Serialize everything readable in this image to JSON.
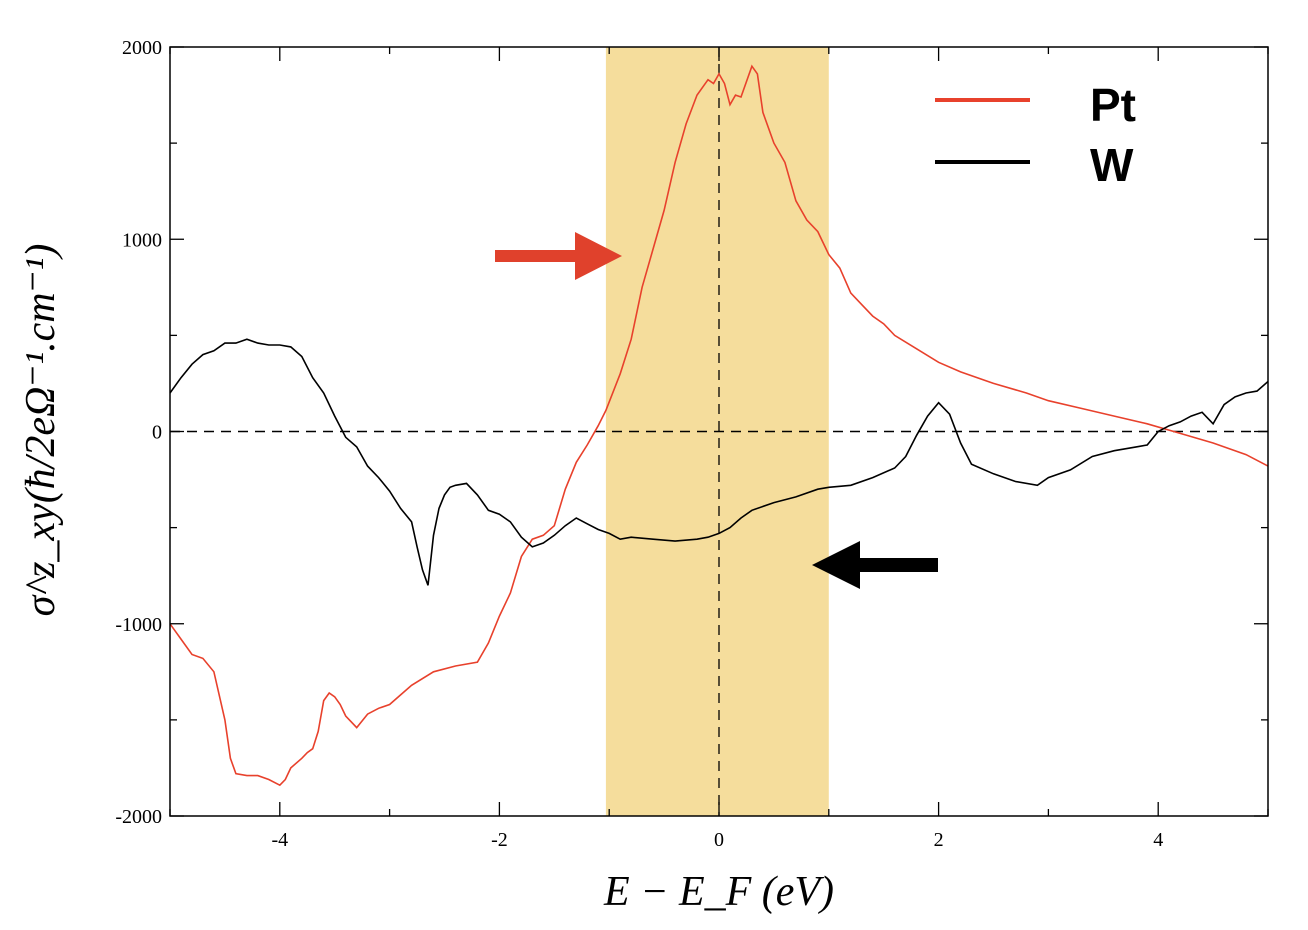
{
  "chart_data": {
    "type": "line",
    "title": "",
    "xlabel": "E − E_F  (eV)",
    "ylabel": "σ^z_xy(ħ/2eΩ⁻¹.cm⁻¹)",
    "xlim": [
      -5,
      5
    ],
    "ylim": [
      -2000,
      2000
    ],
    "xticks": [
      -4,
      -2,
      0,
      2,
      4
    ],
    "yticks": [
      -2000,
      -1000,
      0,
      1000,
      2000
    ],
    "xtick_labels": [
      "-4",
      "-2",
      "0",
      "2",
      "4"
    ],
    "ytick_labels": [
      "-2000",
      "-1000",
      "0",
      "1000",
      "2000"
    ],
    "highlight_band": {
      "x_from": -1.03,
      "x_to": 1.0,
      "color": "#f5dd9c"
    },
    "reference_lines": {
      "horizontal_y": 0,
      "vertical_x": 0,
      "style": "dashed"
    },
    "legend": {
      "position": "top-right"
    },
    "series": [
      {
        "name": "Pt",
        "color": "#e8412c",
        "x": [
          -5.0,
          -4.9,
          -4.8,
          -4.7,
          -4.6,
          -4.5,
          -4.45,
          -4.4,
          -4.3,
          -4.2,
          -4.1,
          -4.0,
          -3.95,
          -3.9,
          -3.8,
          -3.75,
          -3.7,
          -3.65,
          -3.6,
          -3.55,
          -3.5,
          -3.45,
          -3.4,
          -3.3,
          -3.2,
          -3.1,
          -3.0,
          -2.9,
          -2.8,
          -2.6,
          -2.4,
          -2.2,
          -2.1,
          -2.0,
          -1.9,
          -1.8,
          -1.7,
          -1.6,
          -1.5,
          -1.4,
          -1.3,
          -1.2,
          -1.1,
          -1.03,
          -0.9,
          -0.8,
          -0.7,
          -0.6,
          -0.5,
          -0.4,
          -0.3,
          -0.2,
          -0.1,
          -0.05,
          0.0,
          0.05,
          0.1,
          0.15,
          0.2,
          0.3,
          0.35,
          0.4,
          0.5,
          0.6,
          0.7,
          0.8,
          0.9,
          1.0,
          1.1,
          1.2,
          1.3,
          1.4,
          1.5,
          1.6,
          1.8,
          2.0,
          2.2,
          2.5,
          2.8,
          3.0,
          3.3,
          3.6,
          3.9,
          4.2,
          4.5,
          4.8,
          5.0
        ],
        "values": [
          -1000,
          -1080,
          -1160,
          -1180,
          -1250,
          -1500,
          -1700,
          -1780,
          -1790,
          -1790,
          -1810,
          -1840,
          -1810,
          -1750,
          -1700,
          -1670,
          -1650,
          -1560,
          -1400,
          -1360,
          -1380,
          -1420,
          -1480,
          -1540,
          -1470,
          -1440,
          -1420,
          -1370,
          -1320,
          -1250,
          -1220,
          -1200,
          -1100,
          -960,
          -840,
          -650,
          -560,
          -540,
          -490,
          -300,
          -160,
          -70,
          30,
          110,
          300,
          480,
          750,
          950,
          1150,
          1400,
          1600,
          1750,
          1830,
          1810,
          1860,
          1810,
          1700,
          1750,
          1740,
          1900,
          1860,
          1660,
          1500,
          1400,
          1200,
          1100,
          1040,
          920,
          850,
          720,
          660,
          600,
          560,
          500,
          430,
          360,
          310,
          250,
          200,
          160,
          120,
          80,
          40,
          -10,
          -60,
          -120,
          -180
        ]
      },
      {
        "name": "W",
        "color": "#000000",
        "x": [
          -5.0,
          -4.9,
          -4.8,
          -4.7,
          -4.6,
          -4.5,
          -4.4,
          -4.3,
          -4.2,
          -4.1,
          -4.0,
          -3.9,
          -3.8,
          -3.7,
          -3.6,
          -3.5,
          -3.4,
          -3.3,
          -3.2,
          -3.1,
          -3.0,
          -2.9,
          -2.8,
          -2.75,
          -2.7,
          -2.65,
          -2.6,
          -2.55,
          -2.5,
          -2.45,
          -2.4,
          -2.3,
          -2.2,
          -2.1,
          -2.0,
          -1.9,
          -1.8,
          -1.7,
          -1.6,
          -1.5,
          -1.4,
          -1.3,
          -1.2,
          -1.1,
          -1.0,
          -0.9,
          -0.8,
          -0.6,
          -0.4,
          -0.2,
          -0.1,
          0.0,
          0.1,
          0.2,
          0.3,
          0.5,
          0.7,
          0.9,
          1.0,
          1.2,
          1.4,
          1.6,
          1.7,
          1.8,
          1.9,
          2.0,
          2.1,
          2.2,
          2.3,
          2.5,
          2.7,
          2.9,
          3.0,
          3.2,
          3.4,
          3.6,
          3.8,
          3.9,
          4.0,
          4.1,
          4.2,
          4.3,
          4.4,
          4.5,
          4.6,
          4.7,
          4.8,
          4.9,
          5.0
        ],
        "values": [
          200,
          280,
          350,
          400,
          420,
          460,
          460,
          480,
          460,
          450,
          450,
          440,
          390,
          280,
          200,
          80,
          -30,
          -80,
          -180,
          -240,
          -310,
          -400,
          -470,
          -600,
          -720,
          -800,
          -540,
          -400,
          -330,
          -290,
          -280,
          -270,
          -330,
          -410,
          -430,
          -470,
          -550,
          -600,
          -580,
          -540,
          -490,
          -450,
          -480,
          -510,
          -530,
          -560,
          -550,
          -560,
          -570,
          -560,
          -550,
          -530,
          -500,
          -450,
          -410,
          -370,
          -340,
          -300,
          -290,
          -280,
          -240,
          -190,
          -130,
          -20,
          80,
          150,
          90,
          -60,
          -170,
          -220,
          -260,
          -280,
          -240,
          -200,
          -130,
          -100,
          -80,
          -70,
          0,
          30,
          50,
          80,
          100,
          40,
          140,
          180,
          200,
          210,
          260
        ]
      }
    ]
  },
  "ui": {
    "arrow_red_color": "#e0412c",
    "arrow_black_color": "#000000"
  }
}
